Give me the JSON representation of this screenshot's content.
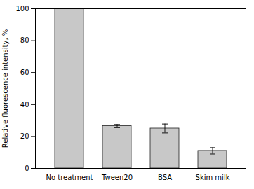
{
  "chart_data": {
    "type": "bar",
    "categories": [
      "No treatment",
      "Tween20",
      "BSA",
      "Skim milk"
    ],
    "values": [
      100,
      26.5,
      25.0,
      11.0
    ],
    "errors": [
      0,
      1.0,
      2.8,
      2.0
    ],
    "color": "#c8c8c8",
    "ylabel": "Relative fluorescence intensity, %",
    "ylim": [
      0,
      100
    ],
    "yticks": [
      0,
      20,
      40,
      60,
      80,
      100
    ],
    "grid": false
  }
}
